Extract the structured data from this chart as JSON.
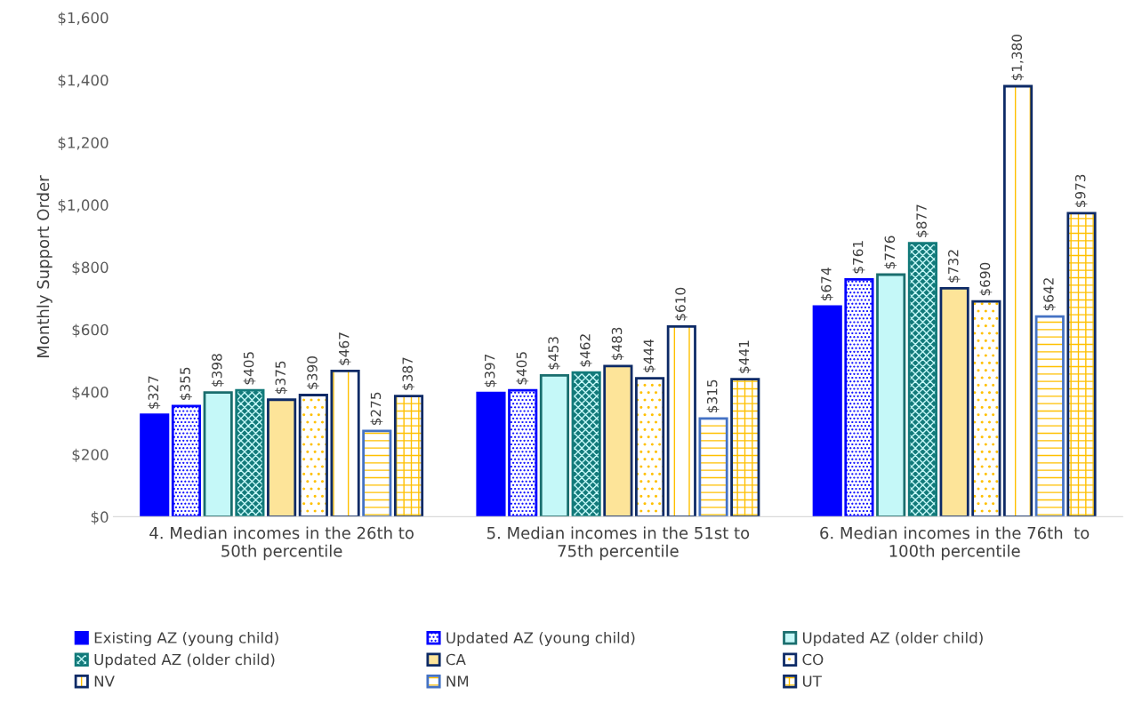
{
  "chart_data": {
    "type": "bar",
    "ylabel": "Monthly Support Order",
    "categories": [
      "4. Median incomes in the 26th to 50th percentile",
      "5. Median incomes in the 51st to 75th percentile",
      "6. Median incomes in the 76th  to 100th percentile"
    ],
    "series": [
      {
        "name": "Existing AZ (young child)",
        "color": "#0000ff",
        "values": [
          327,
          397,
          674
        ],
        "value_labels": [
          "$327",
          "$397",
          "$674"
        ]
      },
      {
        "name": "Updated AZ (young child)",
        "color": "#0000ff",
        "values": [
          355,
          405,
          761
        ],
        "value_labels": [
          "$355",
          "$405",
          "$761"
        ]
      },
      {
        "name": "Updated AZ (older child)",
        "color": "#c5f8f8",
        "values": [
          398,
          453,
          776
        ],
        "value_labels": [
          "$398",
          "$453",
          "$776"
        ]
      },
      {
        "name": "Updated AZ (older child)",
        "color": "#127a7a",
        "values": [
          405,
          462,
          877
        ],
        "value_labels": [
          "$405",
          "$462",
          "$877"
        ]
      },
      {
        "name": "CA",
        "color": "#fde499",
        "values": [
          375,
          483,
          732
        ],
        "value_labels": [
          "$375",
          "$483",
          "$732"
        ]
      },
      {
        "name": "CO",
        "color": "#0d2a66",
        "values": [
          390,
          444,
          690
        ],
        "value_labels": [
          "$390",
          "$444",
          "$690"
        ]
      },
      {
        "name": "NV",
        "color": "#0d2a66",
        "values": [
          467,
          610,
          1380
        ],
        "value_labels": [
          "$467",
          "$610",
          "$1,380"
        ]
      },
      {
        "name": "NM",
        "color": "#4472c4",
        "values": [
          275,
          315,
          642
        ],
        "value_labels": [
          "$275",
          "$315",
          "$642"
        ]
      },
      {
        "name": "UT",
        "color": "#0d2a66",
        "values": [
          387,
          441,
          973
        ],
        "value_labels": [
          "$387",
          "$441",
          "$973"
        ]
      }
    ],
    "ylim": [
      0,
      1600
    ],
    "yticks": [
      {
        "value": 0,
        "label": "$0"
      },
      {
        "value": 200,
        "label": "$200"
      },
      {
        "value": 400,
        "label": "$400"
      },
      {
        "value": 600,
        "label": "$600"
      },
      {
        "value": 800,
        "label": "$800"
      },
      {
        "value": 1000,
        "label": "$1,000"
      },
      {
        "value": 1200,
        "label": "$1,200"
      },
      {
        "value": 1400,
        "label": "$1,400"
      },
      {
        "value": 1600,
        "label": "$1,600"
      }
    ],
    "legend": "bottom",
    "grid": false
  }
}
